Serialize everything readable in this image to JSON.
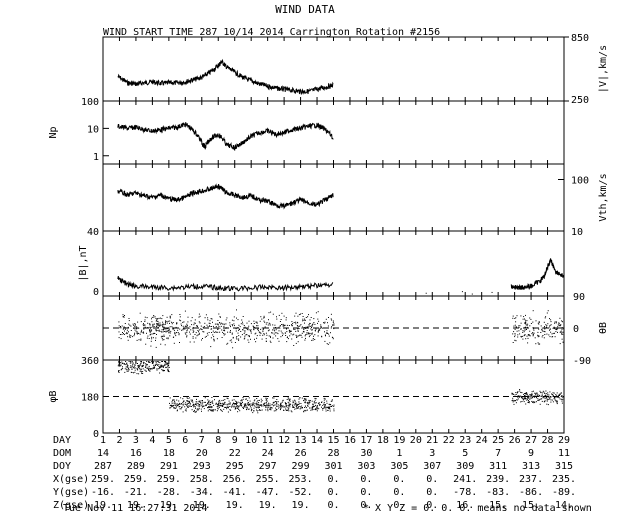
{
  "page": {
    "title": "WIND DATA",
    "subtitle": "WIND START TIME 287 10/14 2014 Carrington Rotation #2156",
    "footer_left": "Tue Nov 11 16:27:31 2014",
    "footer_right": "* X Y Z = 0. 0. 0. means no data shown"
  },
  "chart_data": [
    {
      "type": "line",
      "panel": "speed",
      "ylabel": "|V|,km/s",
      "y_ticks_right": [
        "850",
        "250"
      ],
      "ylim": [
        250,
        850
      ],
      "x": [
        1.9,
        2.5,
        3,
        3.5,
        4,
        4.5,
        5,
        5.5,
        6,
        6.5,
        7,
        7.5,
        8,
        8.2,
        8.5,
        9,
        9.5,
        10,
        10.5,
        11,
        11.5,
        12,
        12.5,
        13,
        13.5,
        14,
        14.5,
        15
      ],
      "values": [
        480,
        420,
        410,
        420,
        430,
        415,
        420,
        420,
        430,
        450,
        470,
        520,
        580,
        620,
        570,
        520,
        470,
        440,
        410,
        390,
        370,
        360,
        350,
        340,
        340,
        360,
        380,
        400
      ]
    },
    {
      "type": "line",
      "panel": "density",
      "ylabel": "Np",
      "y_ticks_left": [
        "100",
        "10",
        "1"
      ],
      "log_scale": true,
      "ylim": [
        0.5,
        100
      ],
      "x": [
        1.9,
        2.5,
        3,
        3.5,
        4,
        4.5,
        5,
        5.5,
        6,
        6.5,
        7,
        7.2,
        7.5,
        8,
        8.5,
        9,
        9.5,
        10,
        10.5,
        11,
        11.5,
        12,
        12.5,
        13,
        13.5,
        14,
        14.5,
        15
      ],
      "values": [
        12,
        10,
        11,
        9,
        8,
        9,
        10,
        11,
        14,
        8,
        3,
        2,
        4,
        6,
        2.5,
        2,
        3,
        5,
        7,
        8,
        6,
        7,
        9,
        10,
        12,
        13,
        9,
        4
      ]
    },
    {
      "type": "line",
      "panel": "thermal_speed",
      "ylabel": "Vth,km/s",
      "y_ticks_right": [
        "100",
        "10"
      ],
      "log_scale": true,
      "ylim": [
        10,
        200
      ],
      "x": [
        1.9,
        2.5,
        3,
        3.5,
        4,
        4.5,
        5,
        5.5,
        6,
        6.5,
        7,
        7.5,
        8,
        8.5,
        9,
        9.5,
        10,
        10.5,
        11,
        11.5,
        12,
        12.5,
        13,
        13.5,
        14,
        14.5,
        15
      ],
      "values": [
        60,
        50,
        55,
        48,
        45,
        50,
        42,
        40,
        45,
        55,
        60,
        65,
        75,
        55,
        50,
        45,
        48,
        40,
        38,
        32,
        30,
        35,
        40,
        35,
        32,
        40,
        50
      ]
    },
    {
      "type": "line",
      "panel": "field_magnitude",
      "ylabel": "|B|,nT",
      "y_ticks_left": [
        "40",
        "0"
      ],
      "ylim": [
        0,
        40
      ],
      "x": [
        1.9,
        2.5,
        3,
        4,
        5,
        6,
        7,
        8,
        9,
        10,
        11,
        12,
        13,
        14,
        15
      ],
      "values": [
        11,
        7,
        6,
        5.5,
        5,
        5.5,
        6,
        5,
        4.5,
        5,
        5.5,
        5,
        6,
        6.5,
        7
      ],
      "x2": [
        25.8,
        26.2,
        26.5,
        27,
        27.5,
        27.8,
        28,
        28.2,
        28.5,
        29
      ],
      "values2": [
        6,
        5,
        5.5,
        6,
        9,
        12,
        18,
        22,
        15,
        12
      ]
    },
    {
      "type": "scatter",
      "panel": "theta",
      "ylabel": "θB",
      "y_ticks_right": [
        "90",
        "0",
        "-90"
      ],
      "ylim": [
        -90,
        90
      ],
      "x_ranges": [
        [
          1.9,
          15
        ],
        [
          25.8,
          29
        ]
      ],
      "values_spread": [
        -60,
        60
      ],
      "reference_line": 0
    },
    {
      "type": "scatter",
      "panel": "phi",
      "ylabel": "φB",
      "y_ticks_left": [
        "360",
        "180",
        "0"
      ],
      "ylim": [
        0,
        360
      ],
      "x_ranges": [
        [
          1.9,
          5
        ],
        [
          5,
          15
        ],
        [
          25.8,
          29
        ]
      ],
      "values_center": [
        330,
        140,
        180
      ],
      "values_spread": [
        40,
        40,
        40
      ],
      "reference_line": 180
    }
  ],
  "table": {
    "rows": [
      {
        "label": "DAY",
        "values": [
          "1",
          "2",
          "3",
          "4",
          "5",
          "6",
          "7",
          "8",
          "9",
          "10",
          "11",
          "12",
          "13",
          "14",
          "15",
          "16",
          "17",
          "18",
          "19",
          "20",
          "21",
          "22",
          "23",
          "24",
          "25",
          "26",
          "27",
          "28",
          "29"
        ]
      },
      {
        "label": "DOM",
        "values": [
          "14",
          "16",
          "18",
          "20",
          "22",
          "24",
          "26",
          "28",
          "30",
          "1",
          "3",
          "5",
          "7",
          "9",
          "11"
        ]
      },
      {
        "label": "DOY",
        "values": [
          "287",
          "289",
          "291",
          "293",
          "295",
          "297",
          "299",
          "301",
          "303",
          "305",
          "307",
          "309",
          "311",
          "313",
          "315"
        ]
      },
      {
        "label": "X(gse)",
        "values": [
          "259.",
          "259.",
          "259.",
          "258.",
          "256.",
          "255.",
          "253.",
          "0.",
          "0.",
          "0.",
          "0.",
          "241.",
          "239.",
          "237.",
          "235."
        ]
      },
      {
        "label": "Y(gse)",
        "values": [
          "-16.",
          "-21.",
          "-28.",
          "-34.",
          "-41.",
          "-47.",
          "-52.",
          "0.",
          "0.",
          "0.",
          "0.",
          "-78.",
          "-83.",
          "-86.",
          "-89."
        ]
      },
      {
        "label": "Z(gse)",
        "values": [
          "19.",
          "19.",
          "19.",
          "19.",
          "19.",
          "19.",
          "19.",
          "0.",
          "0.",
          "0.",
          "0.",
          "16.",
          "15.",
          "15.",
          "14."
        ]
      }
    ]
  }
}
